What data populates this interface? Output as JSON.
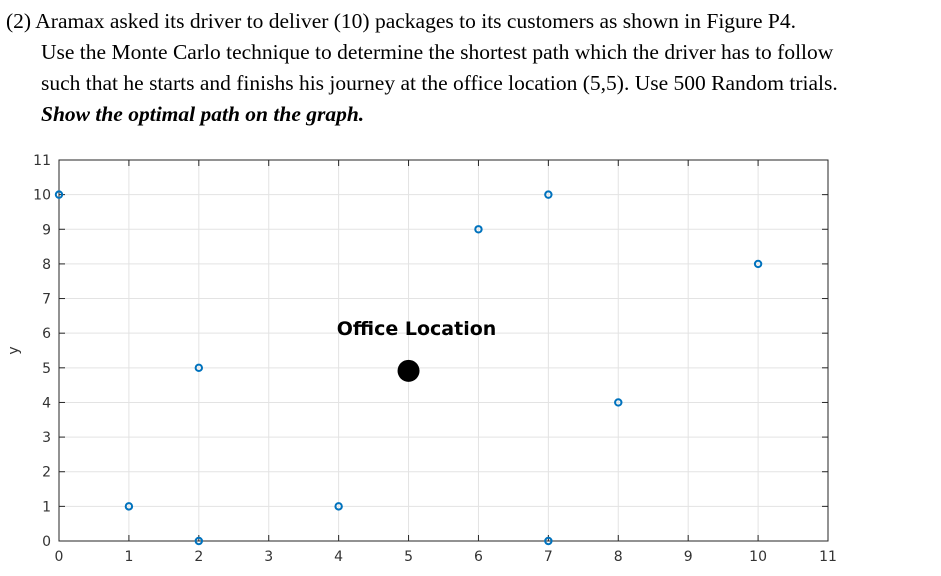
{
  "problem": {
    "line1": "(2) Aramax asked its driver to deliver (10) packages to its customers as shown in Figure P4.",
    "line2": "Use the Monte Carlo technique to determine the shortest path which the driver has to follow",
    "line3": "such that he starts and finishs his journey at the office location (5,5). Use 500 Random trials.",
    "line4": "Show the optimal path on the graph."
  },
  "chart_data": {
    "type": "scatter",
    "title": "",
    "xlabel": "",
    "ylabel": "y",
    "xlim": [
      0,
      11
    ],
    "ylim": [
      0,
      11
    ],
    "xticks": [
      0,
      1,
      2,
      3,
      4,
      5,
      6,
      7,
      8,
      9,
      10,
      11
    ],
    "yticks": [
      0,
      1,
      2,
      3,
      4,
      5,
      6,
      7,
      8,
      9,
      10,
      11
    ],
    "grid": true,
    "series": [
      {
        "points": [
          [
            0,
            10
          ],
          [
            1,
            1
          ],
          [
            2,
            5
          ],
          [
            2,
            0
          ],
          [
            4,
            1
          ],
          [
            6,
            9
          ],
          [
            7,
            10
          ],
          [
            7,
            0
          ],
          [
            8,
            4
          ],
          [
            10,
            8
          ]
        ],
        "color": "#0072BD"
      }
    ],
    "office": {
      "x": 5,
      "y": 5,
      "label": "Office Location",
      "color": "#000000"
    }
  }
}
